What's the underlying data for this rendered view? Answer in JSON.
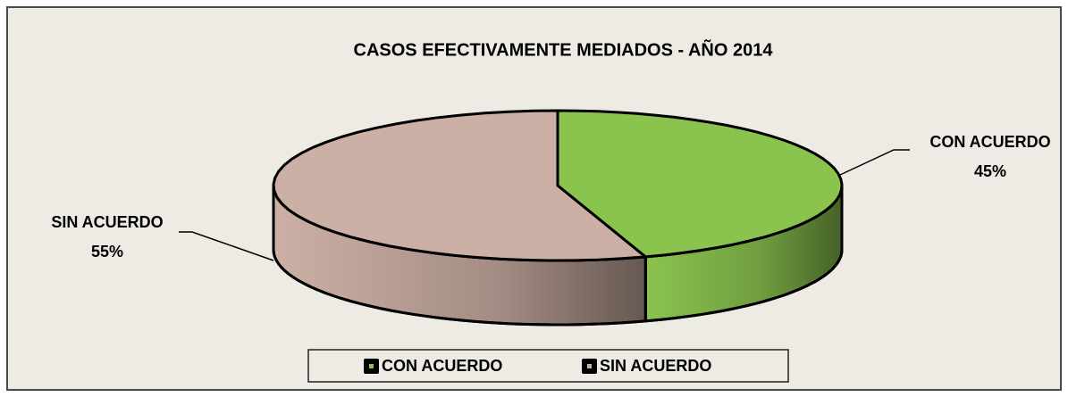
{
  "chart_data": {
    "type": "pie",
    "title": "CASOS EFECTIVAMENTE MEDIADOS - AÑO 2014",
    "categories": [
      "CON ACUERDO",
      "SIN ACUERDO"
    ],
    "values": [
      45,
      55
    ],
    "value_labels": [
      "45%",
      "55%"
    ],
    "colors": [
      "#8bc34f",
      "#cdb0a5"
    ],
    "legend": "bottom"
  }
}
